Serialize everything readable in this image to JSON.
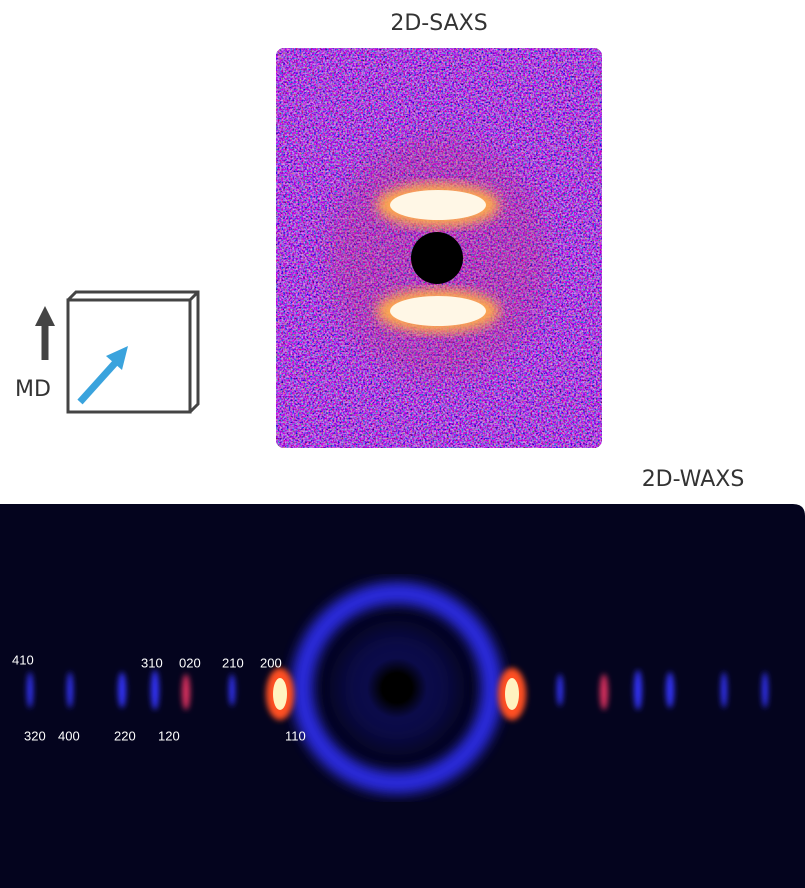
{
  "saxs": {
    "title": "2D-SAXS"
  },
  "orientation": {
    "label": "MD"
  },
  "waxs": {
    "title": "2D-WAXS",
    "peaks": [
      {
        "label": "410"
      },
      {
        "label": "310"
      },
      {
        "label": "020"
      },
      {
        "label": "210"
      },
      {
        "label": "200"
      },
      {
        "label": "320"
      },
      {
        "label": "400"
      },
      {
        "label": "220"
      },
      {
        "label": "120"
      },
      {
        "label": "110"
      }
    ]
  }
}
